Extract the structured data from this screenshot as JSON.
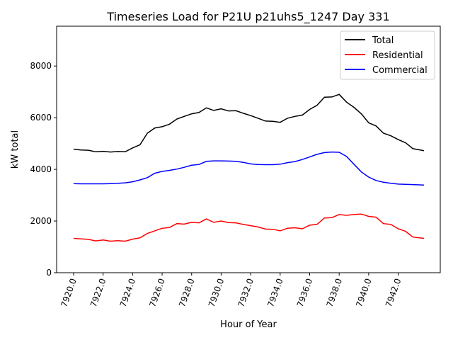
{
  "chart_data": {
    "type": "line",
    "title": "Timeseries Load for P21U p21uhs5_1247  Day 331",
    "xlabel": "Hour of Year",
    "ylabel": "kW total",
    "xlim": [
      7918.85,
      7944.85
    ],
    "ylim": [
      0,
      9540
    ],
    "xticks": [
      7920,
      7922,
      7924,
      7926,
      7928,
      7930,
      7932,
      7934,
      7936,
      7938,
      7940,
      7942
    ],
    "xtick_labels": [
      "7920.0",
      "7922.0",
      "7924.0",
      "7926.0",
      "7928.0",
      "7930.0",
      "7932.0",
      "7934.0",
      "7936.0",
      "7938.0",
      "7940.0",
      "7942.0"
    ],
    "yticks": [
      0,
      2000,
      4000,
      6000,
      8000
    ],
    "ytick_labels": [
      "0",
      "2000",
      "4000",
      "6000",
      "8000"
    ],
    "grid": false,
    "legend_position": "top-right",
    "x": [
      7920,
      7920.5,
      7921,
      7921.5,
      7922,
      7922.5,
      7923,
      7923.5,
      7924,
      7924.5,
      7925,
      7925.5,
      7926,
      7926.5,
      7927,
      7927.5,
      7928,
      7928.5,
      7929,
      7929.5,
      7930,
      7930.5,
      7931,
      7931.5,
      7932,
      7932.5,
      7933,
      7933.5,
      7934,
      7934.5,
      7935,
      7935.5,
      7936,
      7936.5,
      7937,
      7937.5,
      7938,
      7938.5,
      7939,
      7939.5,
      7940,
      7940.5,
      7941,
      7941.5,
      7942,
      7942.5,
      7943,
      7943.75
    ],
    "series": [
      {
        "name": "Total",
        "color": "#000000",
        "values": [
          4780,
          4750,
          4740,
          4680,
          4700,
          4670,
          4690,
          4680,
          4830,
          4950,
          5400,
          5600,
          5650,
          5750,
          5950,
          6050,
          6150,
          6200,
          6380,
          6280,
          6340,
          6260,
          6270,
          6170,
          6080,
          5980,
          5870,
          5860,
          5820,
          5980,
          6050,
          6100,
          6320,
          6480,
          6790,
          6800,
          6900,
          6600,
          6400,
          6150,
          5800,
          5680,
          5400,
          5300,
          5150,
          5030,
          4800,
          4720
        ]
      },
      {
        "name": "Residential",
        "color": "#ff0000",
        "values": [
          1330,
          1310,
          1290,
          1230,
          1270,
          1220,
          1240,
          1220,
          1300,
          1350,
          1520,
          1620,
          1720,
          1750,
          1900,
          1880,
          1950,
          1930,
          2080,
          1950,
          2000,
          1940,
          1930,
          1870,
          1820,
          1770,
          1690,
          1680,
          1620,
          1720,
          1740,
          1700,
          1840,
          1870,
          2120,
          2130,
          2250,
          2220,
          2250,
          2270,
          2180,
          2150,
          1900,
          1870,
          1700,
          1600,
          1380,
          1330
        ]
      },
      {
        "name": "Commercial",
        "color": "#0000ff",
        "values": [
          3450,
          3440,
          3440,
          3440,
          3440,
          3450,
          3460,
          3480,
          3520,
          3590,
          3680,
          3850,
          3920,
          3960,
          4010,
          4080,
          4160,
          4190,
          4310,
          4330,
          4330,
          4320,
          4310,
          4270,
          4210,
          4190,
          4180,
          4180,
          4200,
          4260,
          4300,
          4380,
          4480,
          4580,
          4650,
          4670,
          4660,
          4500,
          4200,
          3900,
          3700,
          3570,
          3500,
          3460,
          3430,
          3420,
          3410,
          3390
        ]
      }
    ]
  }
}
